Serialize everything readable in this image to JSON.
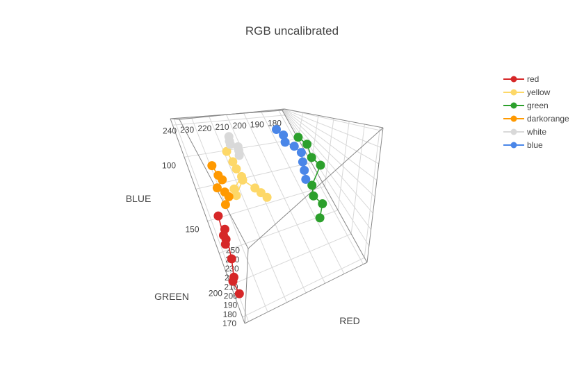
{
  "chart_data": {
    "type": "scatter3d",
    "title": "RGB uncalibrated",
    "axes": {
      "x": {
        "label": "RED",
        "ticks": [
          180,
          190,
          200,
          210,
          220,
          230,
          240
        ]
      },
      "y": {
        "label": "GREEN",
        "ticks": [
          100,
          150,
          200
        ]
      },
      "z": {
        "label": "BLUE",
        "ticks": [
          170,
          180,
          190,
          200,
          210,
          220,
          230,
          240,
          250
        ]
      }
    },
    "series": [
      {
        "name": "red",
        "color": "#d62728",
        "points": [
          [
            240,
            160,
            202
          ],
          [
            239,
            170,
            186
          ],
          [
            238,
            172,
            182
          ],
          [
            239,
            175,
            181
          ],
          [
            238,
            168,
            191
          ],
          [
            238,
            185,
            176
          ],
          [
            240,
            198,
            175
          ],
          [
            241,
            200,
            174
          ],
          [
            240,
            210,
            173
          ]
        ]
      },
      {
        "name": "yellow",
        "color": "#fdd868",
        "points": [
          [
            223,
            110,
            213
          ],
          [
            222,
            120,
            207
          ],
          [
            221,
            125,
            199
          ],
          [
            219,
            130,
            190
          ],
          [
            224,
            135,
            180
          ],
          [
            224,
            140,
            178
          ],
          [
            218,
            130,
            181
          ],
          [
            214,
            140,
            182
          ],
          [
            212,
            145,
            181
          ],
          [
            210,
            150,
            180
          ]
        ]
      },
      {
        "name": "green",
        "color": "#2ca02c",
        "points": [
          [
            186,
            120,
            218
          ],
          [
            184,
            130,
            213
          ],
          [
            184,
            140,
            202
          ],
          [
            182,
            150,
            199
          ],
          [
            189,
            160,
            190
          ],
          [
            191,
            170,
            189
          ],
          [
            189,
            180,
            188
          ],
          [
            193,
            190,
            186
          ]
        ]
      },
      {
        "name": "darkorange",
        "color": "#ff9900",
        "points": [
          [
            234,
            120,
            215
          ],
          [
            233,
            130,
            213
          ],
          [
            232,
            135,
            212
          ],
          [
            236,
            140,
            211
          ],
          [
            233,
            145,
            208
          ],
          [
            232,
            150,
            207
          ],
          [
            235,
            155,
            206
          ]
        ]
      },
      {
        "name": "white",
        "color": "#d9d9d9",
        "points": [
          [
            220,
            100,
            235
          ],
          [
            221,
            105,
            233
          ],
          [
            222,
            110,
            236
          ],
          [
            219,
            115,
            234
          ],
          [
            220,
            120,
            235
          ],
          [
            221,
            125,
            233
          ]
        ]
      },
      {
        "name": "blue",
        "color": "#4a86e8",
        "points": [
          [
            196,
            110,
            238
          ],
          [
            195,
            120,
            234
          ],
          [
            197,
            130,
            232
          ],
          [
            195,
            140,
            231
          ],
          [
            194,
            150,
            228
          ],
          [
            196,
            160,
            225
          ],
          [
            198,
            170,
            224
          ],
          [
            200,
            180,
            223
          ]
        ]
      }
    ]
  }
}
